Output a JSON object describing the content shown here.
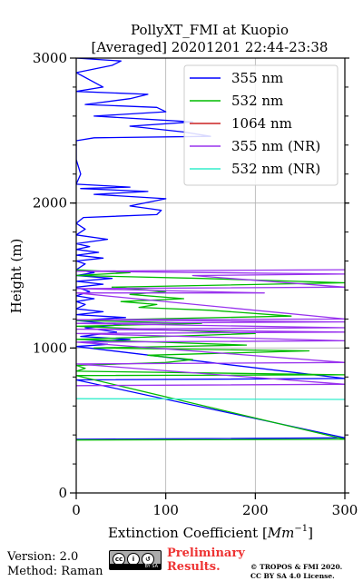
{
  "chart_data": {
    "type": "line",
    "title": "PollyXT_FMI at Kuopio",
    "subtitle": "[Averaged] 20201201 22:44-23:38",
    "xlabel": "Extinction Coefficient",
    "xlabel_unit": "Mm",
    "xlabel_unit_power": "−1",
    "ylabel": "Height (m)",
    "xlim": [
      0,
      300
    ],
    "ylim": [
      0,
      3000
    ],
    "xticks": [
      "0",
      "100",
      "200",
      "300"
    ],
    "yticks": [
      "0",
      "1000",
      "2000",
      "3000"
    ],
    "grid": true,
    "legend_position": "top-right",
    "series": [
      {
        "name": "355 nm",
        "color": "#0000ff",
        "points": [
          [
            0,
            370
          ],
          [
            300,
            380
          ],
          [
            0,
            780
          ],
          [
            300,
            790
          ],
          [
            0,
            1010
          ],
          [
            35,
            1025
          ],
          [
            5,
            1040
          ],
          [
            60,
            1060
          ],
          [
            5,
            1080
          ],
          [
            45,
            1110
          ],
          [
            10,
            1140
          ],
          [
            50,
            1160
          ],
          [
            0,
            1190
          ],
          [
            55,
            1210
          ],
          [
            0,
            1230
          ],
          [
            30,
            1250
          ],
          [
            0,
            1270
          ],
          [
            10,
            1300
          ],
          [
            0,
            1320
          ],
          [
            20,
            1340
          ],
          [
            0,
            1360
          ],
          [
            15,
            1390
          ],
          [
            0,
            1420
          ],
          [
            30,
            1440
          ],
          [
            0,
            1460
          ],
          [
            40,
            1480
          ],
          [
            0,
            1500
          ],
          [
            20,
            1520
          ],
          [
            0,
            1540
          ],
          [
            10,
            1580
          ],
          [
            0,
            1600
          ],
          [
            30,
            1620
          ],
          [
            0,
            1640
          ],
          [
            25,
            1660
          ],
          [
            0,
            1680
          ],
          [
            15,
            1700
          ],
          [
            0,
            1720
          ],
          [
            35,
            1750
          ],
          [
            0,
            1780
          ],
          [
            10,
            1820
          ],
          [
            0,
            1860
          ],
          [
            8,
            1900
          ],
          [
            90,
            1920
          ],
          [
            95,
            1950
          ],
          [
            60,
            1980
          ],
          [
            100,
            2030
          ],
          [
            20,
            2060
          ],
          [
            80,
            2080
          ],
          [
            5,
            2100
          ],
          [
            60,
            2110
          ],
          [
            0,
            2130
          ],
          [
            5,
            2200
          ],
          [
            0,
            2300
          ],
          [
            0,
            2430
          ],
          [
            20,
            2450
          ],
          [
            150,
            2460
          ],
          [
            120,
            2490
          ],
          [
            60,
            2530
          ],
          [
            130,
            2560
          ],
          [
            20,
            2600
          ],
          [
            100,
            2630
          ],
          [
            90,
            2660
          ],
          [
            10,
            2680
          ],
          [
            60,
            2720
          ],
          [
            80,
            2750
          ],
          [
            0,
            2770
          ],
          [
            30,
            2800
          ],
          [
            0,
            2900
          ],
          [
            40,
            2950
          ],
          [
            50,
            2980
          ],
          [
            0,
            3000
          ]
        ]
      },
      {
        "name": "532 nm",
        "color": "#00bb00",
        "points": [
          [
            0,
            365
          ],
          [
            300,
            370
          ],
          [
            0,
            810
          ],
          [
            300,
            815
          ],
          [
            0,
            840
          ],
          [
            10,
            860
          ],
          [
            0,
            880
          ],
          [
            100,
            900
          ],
          [
            130,
            920
          ],
          [
            80,
            950
          ],
          [
            260,
            980
          ],
          [
            20,
            1000
          ],
          [
            190,
            1020
          ],
          [
            0,
            1060
          ],
          [
            100,
            1080
          ],
          [
            200,
            1100
          ],
          [
            0,
            1150
          ],
          [
            140,
            1170
          ],
          [
            0,
            1190
          ],
          [
            240,
            1220
          ],
          [
            150,
            1260
          ],
          [
            70,
            1280
          ],
          [
            90,
            1300
          ],
          [
            50,
            1320
          ],
          [
            120,
            1340
          ],
          [
            60,
            1370
          ],
          [
            100,
            1390
          ],
          [
            40,
            1420
          ],
          [
            300,
            1450
          ],
          [
            140,
            1480
          ],
          [
            0,
            1500
          ],
          [
            60,
            1520
          ],
          [
            0,
            1540
          ]
        ]
      },
      {
        "name": "1064 nm",
        "color": "#cc2222",
        "points": []
      },
      {
        "name": "355 nm (NR)",
        "color": "#9933ee",
        "points": [
          [
            0,
            740
          ],
          [
            300,
            750
          ],
          [
            0,
            890
          ],
          [
            300,
            900
          ],
          [
            0,
            1040
          ],
          [
            300,
            1050
          ],
          [
            0,
            1100
          ],
          [
            300,
            1110
          ],
          [
            0,
            1130
          ],
          [
            300,
            1140
          ],
          [
            0,
            1170
          ],
          [
            300,
            1180
          ],
          [
            0,
            1195
          ],
          [
            300,
            1200
          ],
          [
            0,
            1380
          ],
          [
            210,
            1380
          ],
          [
            0,
            1410
          ],
          [
            300,
            1420
          ],
          [
            130,
            1500
          ],
          [
            300,
            1510
          ],
          [
            0,
            1530
          ],
          [
            300,
            1540
          ]
        ]
      },
      {
        "name": "532 nm (NR)",
        "color": "#33eecc",
        "points": [
          [
            0,
            650
          ],
          [
            300,
            645
          ]
        ]
      }
    ]
  },
  "footer": {
    "version": "Version: 2.0",
    "method": "Method: Raman",
    "license_badge": "BY SA",
    "preliminary_line1": "Preliminary",
    "preliminary_line2": "Results.",
    "copyright_line1": "© TROPOS & FMI 2020.",
    "copyright_line2": "CC BY SA 4.0 License."
  }
}
